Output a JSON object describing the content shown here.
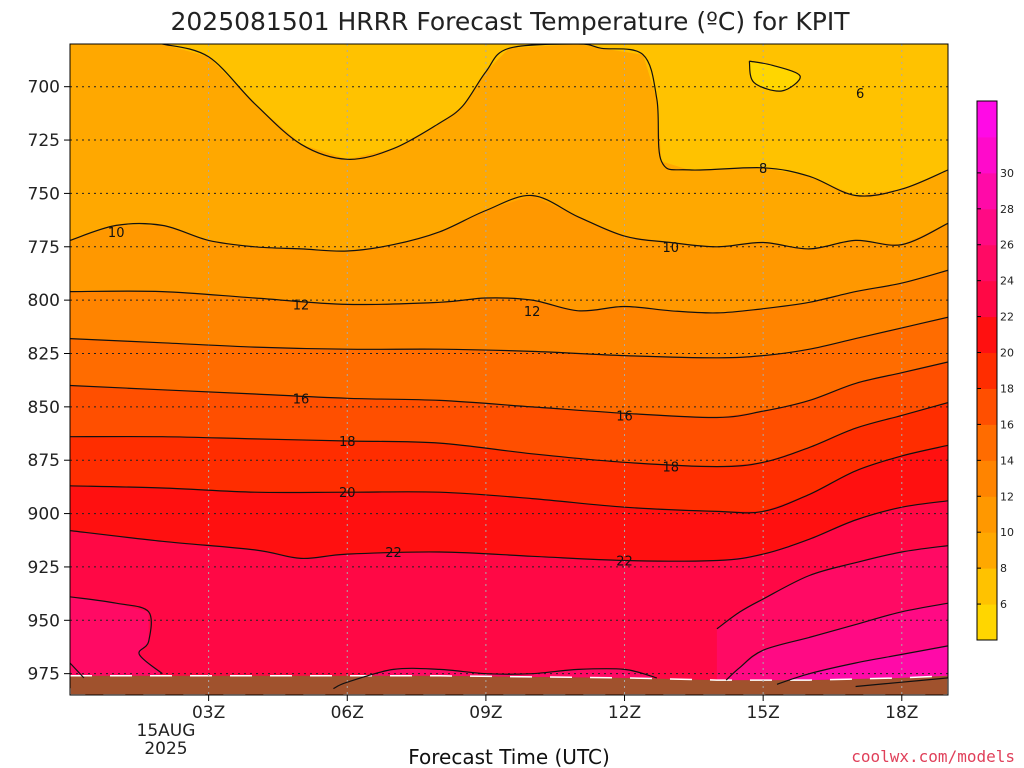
{
  "chart_data": {
    "type": "heatmap",
    "title": "2025081501 HRRR Forecast Temperature (ºC) for KPIT",
    "xlabel": "Forecast Time (UTC)",
    "ylabel": "",
    "x_ticks": [
      "03Z",
      "06Z",
      "09Z",
      "12Z",
      "15Z",
      "18Z"
    ],
    "x_tick_hours": [
      3,
      6,
      9,
      12,
      15,
      18
    ],
    "x_date_label": [
      "15AUG",
      "2025"
    ],
    "xlim": [
      0,
      19
    ],
    "y_ticks": [
      "700",
      "725",
      "750",
      "775",
      "800",
      "825",
      "850",
      "875",
      "900",
      "925",
      "950",
      "975"
    ],
    "ylim": [
      680,
      985
    ],
    "grid": true,
    "colorbar": {
      "levels": [
        4,
        6,
        8,
        10,
        12,
        14,
        16,
        18,
        20,
        22,
        24,
        26,
        28,
        30,
        32
      ],
      "labels": [
        "6",
        "8",
        "10",
        "12",
        "14",
        "16",
        "18",
        "20",
        "22",
        "24",
        "26",
        "28",
        "30"
      ],
      "colors": [
        "#ffd600",
        "#ffc200",
        "#ffa800",
        "#ff9800",
        "#ff8400",
        "#ff6c00",
        "#ff4f00",
        "#ff2d00",
        "#ff1010",
        "#ff0845",
        "#ff0a64",
        "#ff0a84",
        "#ff0aa8",
        "#ff0acb",
        "#ff0ae6"
      ]
    },
    "contours": [
      {
        "level": 6,
        "label": "6",
        "points": [
          [
            14.7,
            688
          ],
          [
            15.2,
            690
          ],
          [
            15.8,
            695
          ],
          [
            15.4,
            702
          ],
          [
            14.8,
            698
          ]
        ]
      },
      {
        "level": 8,
        "label": "8",
        "points": [
          [
            2.0,
            680
          ],
          [
            3.0,
            686
          ],
          [
            4.0,
            708
          ],
          [
            5.0,
            727
          ],
          [
            6.0,
            734
          ],
          [
            7.0,
            729
          ],
          [
            8.0,
            717
          ],
          [
            8.5,
            709
          ],
          [
            9.0,
            693
          ],
          [
            9.5,
            682
          ],
          [
            11.0,
            680
          ],
          [
            11.5,
            682
          ],
          [
            12.4,
            685
          ],
          [
            12.7,
            706
          ],
          [
            12.8,
            735
          ],
          [
            13.4,
            739
          ],
          [
            15.0,
            738
          ],
          [
            16.0,
            742
          ],
          [
            17.0,
            751
          ],
          [
            18.0,
            748
          ],
          [
            19.0,
            739
          ]
        ]
      },
      {
        "level": 10,
        "label": "10",
        "points": [
          [
            0.0,
            772
          ],
          [
            1.0,
            765
          ],
          [
            2.0,
            765
          ],
          [
            3.0,
            772
          ],
          [
            4.0,
            775
          ],
          [
            5.0,
            776
          ],
          [
            6.0,
            777
          ],
          [
            7.0,
            774
          ],
          [
            8.0,
            768
          ],
          [
            9.0,
            758
          ],
          [
            10.0,
            751
          ],
          [
            11.0,
            761
          ],
          [
            12.0,
            770
          ],
          [
            13.0,
            773
          ],
          [
            14.0,
            775
          ],
          [
            15.0,
            773
          ],
          [
            16.0,
            776
          ],
          [
            17.0,
            772
          ],
          [
            18.0,
            774
          ],
          [
            19.0,
            764
          ]
        ]
      },
      {
        "level": 12,
        "label": "12",
        "points": [
          [
            0.0,
            796
          ],
          [
            2.0,
            796
          ],
          [
            4.0,
            799
          ],
          [
            6.0,
            802
          ],
          [
            8.0,
            801
          ],
          [
            9.0,
            799
          ],
          [
            10.0,
            800
          ],
          [
            11.0,
            805
          ],
          [
            12.0,
            803
          ],
          [
            13.0,
            805
          ],
          [
            14.0,
            806
          ],
          [
            15.0,
            804
          ],
          [
            16.0,
            801
          ],
          [
            17.0,
            796
          ],
          [
            18.0,
            792
          ],
          [
            19.0,
            786
          ]
        ]
      },
      {
        "level": 14,
        "label": "",
        "points": [
          [
            0.0,
            818
          ],
          [
            2.0,
            820
          ],
          [
            4.0,
            822
          ],
          [
            6.0,
            823
          ],
          [
            8.0,
            823
          ],
          [
            10.0,
            824
          ],
          [
            12.0,
            826
          ],
          [
            14.0,
            827
          ],
          [
            15.0,
            826
          ],
          [
            16.0,
            823
          ],
          [
            17.0,
            818
          ],
          [
            18.0,
            813
          ],
          [
            19.0,
            808
          ]
        ]
      },
      {
        "level": 16,
        "label": "16",
        "points": [
          [
            0.0,
            840
          ],
          [
            2.0,
            842
          ],
          [
            4.0,
            844
          ],
          [
            6.0,
            846
          ],
          [
            8.0,
            847
          ],
          [
            10.0,
            850
          ],
          [
            12.0,
            853
          ],
          [
            14.0,
            855
          ],
          [
            15.0,
            852
          ],
          [
            16.0,
            847
          ],
          [
            17.0,
            839
          ],
          [
            18.0,
            834
          ],
          [
            19.0,
            829
          ]
        ]
      },
      {
        "level": 18,
        "label": "18",
        "points": [
          [
            0.0,
            864
          ],
          [
            2.0,
            864
          ],
          [
            4.0,
            865
          ],
          [
            6.0,
            866
          ],
          [
            8.0,
            867
          ],
          [
            10.0,
            872
          ],
          [
            12.0,
            876
          ],
          [
            14.0,
            878
          ],
          [
            15.0,
            876
          ],
          [
            16.0,
            869
          ],
          [
            17.0,
            860
          ],
          [
            18.0,
            854
          ],
          [
            19.0,
            848
          ]
        ]
      },
      {
        "level": 20,
        "label": "20",
        "points": [
          [
            0.0,
            887
          ],
          [
            2.0,
            888
          ],
          [
            4.0,
            890
          ],
          [
            6.0,
            890
          ],
          [
            8.0,
            890
          ],
          [
            10.0,
            893
          ],
          [
            12.0,
            897
          ],
          [
            14.0,
            899
          ],
          [
            15.0,
            899
          ],
          [
            16.0,
            891
          ],
          [
            17.0,
            880
          ],
          [
            18.0,
            873
          ],
          [
            19.0,
            868
          ]
        ]
      },
      {
        "level": 22,
        "label": "22",
        "points": [
          [
            0.0,
            908
          ],
          [
            2.0,
            913
          ],
          [
            4.0,
            917
          ],
          [
            5.0,
            921
          ],
          [
            6.0,
            919
          ],
          [
            8.0,
            918
          ],
          [
            10.0,
            920
          ],
          [
            12.0,
            922
          ],
          [
            14.0,
            922
          ],
          [
            15.0,
            919
          ],
          [
            16.0,
            912
          ],
          [
            17.0,
            903
          ],
          [
            18.0,
            897
          ],
          [
            19.0,
            894
          ]
        ]
      },
      {
        "level": 24,
        "label": "",
        "points": [
          [
            19.0,
            915
          ],
          [
            18.0,
            918
          ],
          [
            17.0,
            923
          ],
          [
            16.0,
            929
          ],
          [
            15.0,
            940
          ],
          [
            14.5,
            946
          ],
          [
            14.0,
            954
          ]
        ]
      },
      {
        "level": 26,
        "label": "",
        "points": [
          [
            0.0,
            939
          ],
          [
            1.0,
            942
          ],
          [
            1.7,
            946
          ],
          [
            1.7,
            960
          ],
          [
            1.5,
            966
          ],
          [
            2.0,
            975
          ]
        ]
      },
      {
        "level": 26,
        "label": "",
        "points": [
          [
            0.0,
            970
          ],
          [
            0.3,
            977
          ]
        ]
      },
      {
        "level": 26,
        "label": "",
        "points": [
          [
            19.0,
            942
          ],
          [
            18.0,
            946
          ],
          [
            17.0,
            952
          ],
          [
            16.0,
            958
          ],
          [
            15.0,
            964
          ],
          [
            14.5,
            972
          ],
          [
            14.2,
            978
          ]
        ]
      },
      {
        "level": 26,
        "label": "",
        "points": [
          [
            5.7,
            982
          ],
          [
            6.0,
            979
          ],
          [
            7.0,
            973
          ],
          [
            8.0,
            973
          ],
          [
            9.0,
            975
          ],
          [
            10.0,
            975
          ],
          [
            11.0,
            973
          ],
          [
            12.0,
            973
          ],
          [
            12.7,
            977
          ]
        ]
      },
      {
        "level": 28,
        "label": "",
        "points": [
          [
            19.0,
            962
          ],
          [
            18.0,
            966
          ],
          [
            17.0,
            970
          ],
          [
            16.0,
            975
          ],
          [
            15.3,
            980
          ]
        ]
      },
      {
        "level": 30,
        "label": "",
        "points": [
          [
            17.0,
            981
          ],
          [
            18.0,
            979
          ],
          [
            19.0,
            977
          ]
        ]
      }
    ],
    "contour_labels": [
      {
        "text": "6",
        "x": 17.1,
        "y": 703
      },
      {
        "text": "8",
        "x": 15.0,
        "y": 738
      },
      {
        "text": "10",
        "x": 1.0,
        "y": 768
      },
      {
        "text": "10",
        "x": 13.0,
        "y": 775
      },
      {
        "text": "12",
        "x": 5.0,
        "y": 802
      },
      {
        "text": "12",
        "x": 10.0,
        "y": 805
      },
      {
        "text": "16",
        "x": 5.0,
        "y": 846
      },
      {
        "text": "16",
        "x": 12.0,
        "y": 854
      },
      {
        "text": "18",
        "x": 6.0,
        "y": 866
      },
      {
        "text": "18",
        "x": 13.0,
        "y": 878
      },
      {
        "text": "20",
        "x": 6.0,
        "y": 890
      },
      {
        "text": "22",
        "x": 7.0,
        "y": 918
      },
      {
        "text": "22",
        "x": 12.0,
        "y": 922
      }
    ],
    "terrain_color": "#a0522d",
    "terrain_surface": [
      [
        0,
        976
      ],
      [
        4,
        976
      ],
      [
        8,
        976
      ],
      [
        12,
        977
      ],
      [
        14,
        978
      ],
      [
        16,
        978
      ],
      [
        18,
        977
      ],
      [
        19,
        976
      ]
    ]
  },
  "credit": "coolwx.com/models"
}
